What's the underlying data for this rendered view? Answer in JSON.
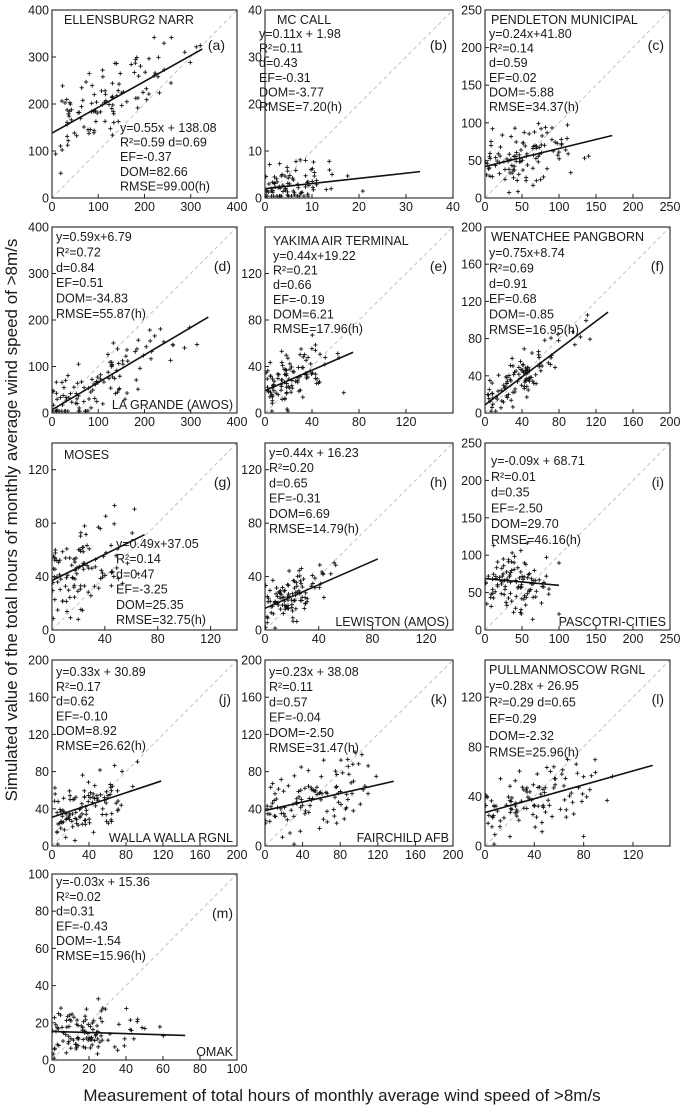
{
  "figure": {
    "ylabel": "Simulated value of the total hours of monthly average wind speed of >8m/s",
    "xlabel": "Measurement of total hours of monthly average wind speed of >8m/s"
  },
  "chart_data": [
    {
      "type": "scatter",
      "panel": "(a)",
      "station": "ELLENSBURG2 NARR",
      "xlim": [
        0,
        400
      ],
      "ylim": [
        0,
        400
      ],
      "xticks": [
        0,
        100,
        200,
        300,
        400
      ],
      "yticks": [
        0,
        100,
        200,
        300,
        400
      ],
      "fit": {
        "slope": 0.55,
        "intercept": 138.08,
        "x_range": [
          0,
          325
        ]
      },
      "stats": [
        "y=0.55x + 138.08",
        "R²=0.59 d=0.69",
        "EF=-0.37",
        "DOM=82.66",
        "RMSE=99.00(h)"
      ],
      "points": {
        "x_center": 150,
        "x_spread": 75,
        "x_min": 0,
        "x_max": 330,
        "noise": 38,
        "n": 110,
        "seed": 11
      }
    },
    {
      "type": "scatter",
      "panel": "(b)",
      "station": "MC CALL",
      "xlim": [
        0,
        40
      ],
      "ylim": [
        0,
        40
      ],
      "xticks": [
        0,
        10,
        20,
        30,
        40
      ],
      "yticks": [
        0,
        10,
        20,
        30,
        40
      ],
      "fit": {
        "slope": 0.11,
        "intercept": 1.98,
        "x_range": [
          0,
          33
        ]
      },
      "stats": [
        "y=0.11x + 1.98",
        "R²=0.11",
        "d=0.43",
        "EF=-0.31",
        "DOM=-3.77",
        "RMSE=7.20(h)"
      ],
      "points": {
        "x_center": 5,
        "x_spread": 6,
        "x_min": 0,
        "x_max": 33,
        "noise": 2.2,
        "n": 90,
        "seed": 23
      }
    },
    {
      "type": "scatter",
      "panel": "(c)",
      "station": "PENDLETON MUNICIPAL",
      "xlim": [
        0,
        250
      ],
      "ylim": [
        0,
        250
      ],
      "xticks": [
        0,
        50,
        100,
        150,
        200,
        250
      ],
      "yticks": [
        0,
        50,
        100,
        150,
        200,
        250
      ],
      "fit": {
        "slope": 0.24,
        "intercept": 41.8,
        "x_range": [
          0,
          172
        ]
      },
      "stats": [
        "y=0.24x+41.80",
        "R²=0.14",
        "d=0.59",
        "EF=0.02",
        "DOM=-5.88",
        "RMSE=34.37(h)"
      ],
      "points": {
        "x_center": 60,
        "x_spread": 35,
        "x_min": 0,
        "x_max": 170,
        "noise": 20,
        "n": 110,
        "seed": 37
      }
    },
    {
      "type": "scatter",
      "panel": "(d)",
      "station": "LA GRANDE (AWOS)",
      "xlim": [
        0,
        400
      ],
      "ylim": [
        0,
        400
      ],
      "xticks": [
        0,
        100,
        200,
        300,
        400
      ],
      "yticks": [
        0,
        100,
        200,
        300,
        400
      ],
      "fit": {
        "slope": 0.59,
        "intercept": 6.79,
        "x_range": [
          0,
          338
        ]
      },
      "stats": [
        "y=0.59x+6.79",
        "R²=0.72",
        "d=0.84",
        "EF=0.51",
        "DOM=-34.83",
        "RMSE=55.87(h)"
      ],
      "points": {
        "x_center": 120,
        "x_spread": 85,
        "x_min": 0,
        "x_max": 335,
        "noise": 30,
        "n": 110,
        "seed": 41
      }
    },
    {
      "type": "scatter",
      "panel": "(e)",
      "station": "YAKIMA AIR TERMINAL",
      "xlim": [
        0,
        160
      ],
      "ylim": [
        0,
        160
      ],
      "xticks": [
        0,
        40,
        80,
        120
      ],
      "yticks": [
        0,
        40,
        80,
        120
      ],
      "fit": {
        "slope": 0.44,
        "intercept": 19.22,
        "x_range": [
          0,
          75
        ]
      },
      "stats": [
        "y=0.44x+19.22",
        "R²=0.21",
        "d=0.66",
        "EF=-0.19",
        "DOM=6.21",
        "RMSE=17.96(h)"
      ],
      "points": {
        "x_center": 28,
        "x_spread": 18,
        "x_min": 0,
        "x_max": 75,
        "noise": 11,
        "n": 110,
        "seed": 53
      }
    },
    {
      "type": "scatter",
      "panel": "(f)",
      "station": "WENATCHEE PANGBORN",
      "xlim": [
        0,
        200
      ],
      "ylim": [
        0,
        200
      ],
      "xticks": [
        0,
        40,
        80,
        120,
        160,
        200
      ],
      "yticks": [
        0,
        40,
        80,
        120,
        160,
        200
      ],
      "fit": {
        "slope": 0.75,
        "intercept": 8.74,
        "x_range": [
          0,
          133
        ]
      },
      "stats": [
        "y=0.75x+8.74",
        "R²=0.69",
        "d=0.91",
        "EF=0.68",
        "DOM=-0.85",
        "RMSE=16.95(h)"
      ],
      "points": {
        "x_center": 45,
        "x_spread": 30,
        "x_min": 0,
        "x_max": 135,
        "noise": 11,
        "n": 110,
        "seed": 67
      }
    },
    {
      "type": "scatter",
      "panel": "(g)",
      "station": "MOSES",
      "xlim": [
        0,
        140
      ],
      "ylim": [
        0,
        140
      ],
      "xticks": [
        0,
        40,
        80,
        120
      ],
      "yticks": [
        0,
        40,
        80,
        120
      ],
      "fit": {
        "slope": 0.49,
        "intercept": 37.05,
        "x_range": [
          0,
          70
        ]
      },
      "stats": [
        "y=0.49x+37.05",
        "R²=0.14",
        "d=0.47",
        "EF=-3.25",
        "DOM=25.35",
        "RMSE=32.75(h)"
      ],
      "points": {
        "x_center": 28,
        "x_spread": 17,
        "x_min": 0,
        "x_max": 70,
        "noise": 16,
        "n": 110,
        "seed": 79
      }
    },
    {
      "type": "scatter",
      "panel": "(h)",
      "station": "LEWISTON (AMOS)",
      "xlim": [
        0,
        140
      ],
      "ylim": [
        0,
        140
      ],
      "xticks": [
        0,
        40,
        80,
        120
      ],
      "yticks": [
        0,
        40,
        80,
        120
      ],
      "fit": {
        "slope": 0.44,
        "intercept": 16.23,
        "x_range": [
          0,
          84
        ]
      },
      "stats": [
        "y=0.44x + 16.23",
        "R²=0.20",
        "d=0.65",
        "EF=-0.31",
        "DOM=6.69",
        "RMSE=14.79(h)"
      ],
      "points": {
        "x_center": 18,
        "x_spread": 16,
        "x_min": 0,
        "x_max": 84,
        "noise": 9,
        "n": 110,
        "seed": 97
      }
    },
    {
      "type": "scatter",
      "panel": "(i)",
      "station": "PASCOTRI-CITIES",
      "xlim": [
        0,
        250
      ],
      "ylim": [
        0,
        250
      ],
      "xticks": [
        0,
        50,
        100,
        150,
        200,
        250
      ],
      "yticks": [
        0,
        50,
        100,
        150,
        200,
        250
      ],
      "fit": {
        "slope": -0.09,
        "intercept": 68.71,
        "x_range": [
          0,
          100
        ]
      },
      "stats": [
        "y=-0.09x + 68.71",
        "R²=0.01",
        "d=0.35",
        "EF=-2.50",
        "DOM=29.70",
        "RMSE=46.16(h)"
      ],
      "points": {
        "x_center": 45,
        "x_spread": 24,
        "x_min": 0,
        "x_max": 100,
        "noise": 20,
        "n": 110,
        "seed": 103
      }
    },
    {
      "type": "scatter",
      "panel": "(j)",
      "station": "WALLA WALLA RGNL",
      "xlim": [
        0,
        200
      ],
      "ylim": [
        0,
        200
      ],
      "xticks": [
        0,
        40,
        80,
        120,
        160,
        200
      ],
      "yticks": [
        0,
        40,
        80,
        120,
        160,
        200
      ],
      "fit": {
        "slope": 0.33,
        "intercept": 30.89,
        "x_range": [
          0,
          118
        ]
      },
      "stats": [
        "y=0.33x + 30.89",
        "R²=0.17",
        "d=0.62",
        "EF=-0.10",
        "DOM=8.92",
        "RMSE=26.62(h)"
      ],
      "points": {
        "x_center": 38,
        "x_spread": 24,
        "x_min": 0,
        "x_max": 118,
        "noise": 16,
        "n": 110,
        "seed": 113
      }
    },
    {
      "type": "scatter",
      "panel": "(k)",
      "station": "FAIRCHILD AFB",
      "xlim": [
        0,
        200
      ],
      "ylim": [
        0,
        200
      ],
      "xticks": [
        0,
        40,
        80,
        120,
        160,
        200
      ],
      "yticks": [
        0,
        40,
        80,
        120,
        160,
        200
      ],
      "fit": {
        "slope": 0.23,
        "intercept": 38.08,
        "x_range": [
          0,
          137
        ]
      },
      "stats": [
        "y=0.23x + 38.08",
        "R²=0.11",
        "d=0.57",
        "EF=-0.04",
        "DOM=-2.50",
        "RMSE=31.47(h)"
      ],
      "points": {
        "x_center": 60,
        "x_spread": 32,
        "x_min": 0,
        "x_max": 135,
        "noise": 18,
        "n": 110,
        "seed": 127
      }
    },
    {
      "type": "scatter",
      "panel": "(l)",
      "station": "PULLMANMOSCOW RGNL",
      "xlim": [
        0,
        150
      ],
      "ylim": [
        0,
        150
      ],
      "xticks": [
        0,
        40,
        80,
        120
      ],
      "yticks": [
        0,
        40,
        80,
        120
      ],
      "fit": {
        "slope": 0.28,
        "intercept": 26.95,
        "x_range": [
          0,
          136
        ]
      },
      "stats": [
        "y=0.28x + 26.95",
        "R²=0.29 d=0.65",
        "EF=0.29",
        "DOM=-2.32",
        "RMSE=25.96(h)"
      ],
      "points": {
        "x_center": 45,
        "x_spread": 28,
        "x_min": 0,
        "x_max": 135,
        "noise": 14,
        "n": 110,
        "seed": 131
      }
    },
    {
      "type": "scatter",
      "panel": "(m)",
      "station": "OMAK",
      "xlim": [
        0,
        100
      ],
      "ylim": [
        0,
        100
      ],
      "xticks": [
        0,
        20,
        40,
        60,
        80,
        100
      ],
      "yticks": [
        0,
        20,
        40,
        60,
        80,
        100
      ],
      "fit": {
        "slope": -0.03,
        "intercept": 15.36,
        "x_range": [
          0,
          72
        ]
      },
      "stats": [
        "y=-0.03x + 15.36",
        "R²=0.02",
        "d=0.31",
        "EF=-0.43",
        "DOM=-1.54",
        "RMSE=15.96(h)"
      ],
      "points": {
        "x_center": 20,
        "x_spread": 14,
        "x_min": 0,
        "x_max": 72,
        "noise": 7,
        "n": 110,
        "seed": 149
      }
    }
  ]
}
